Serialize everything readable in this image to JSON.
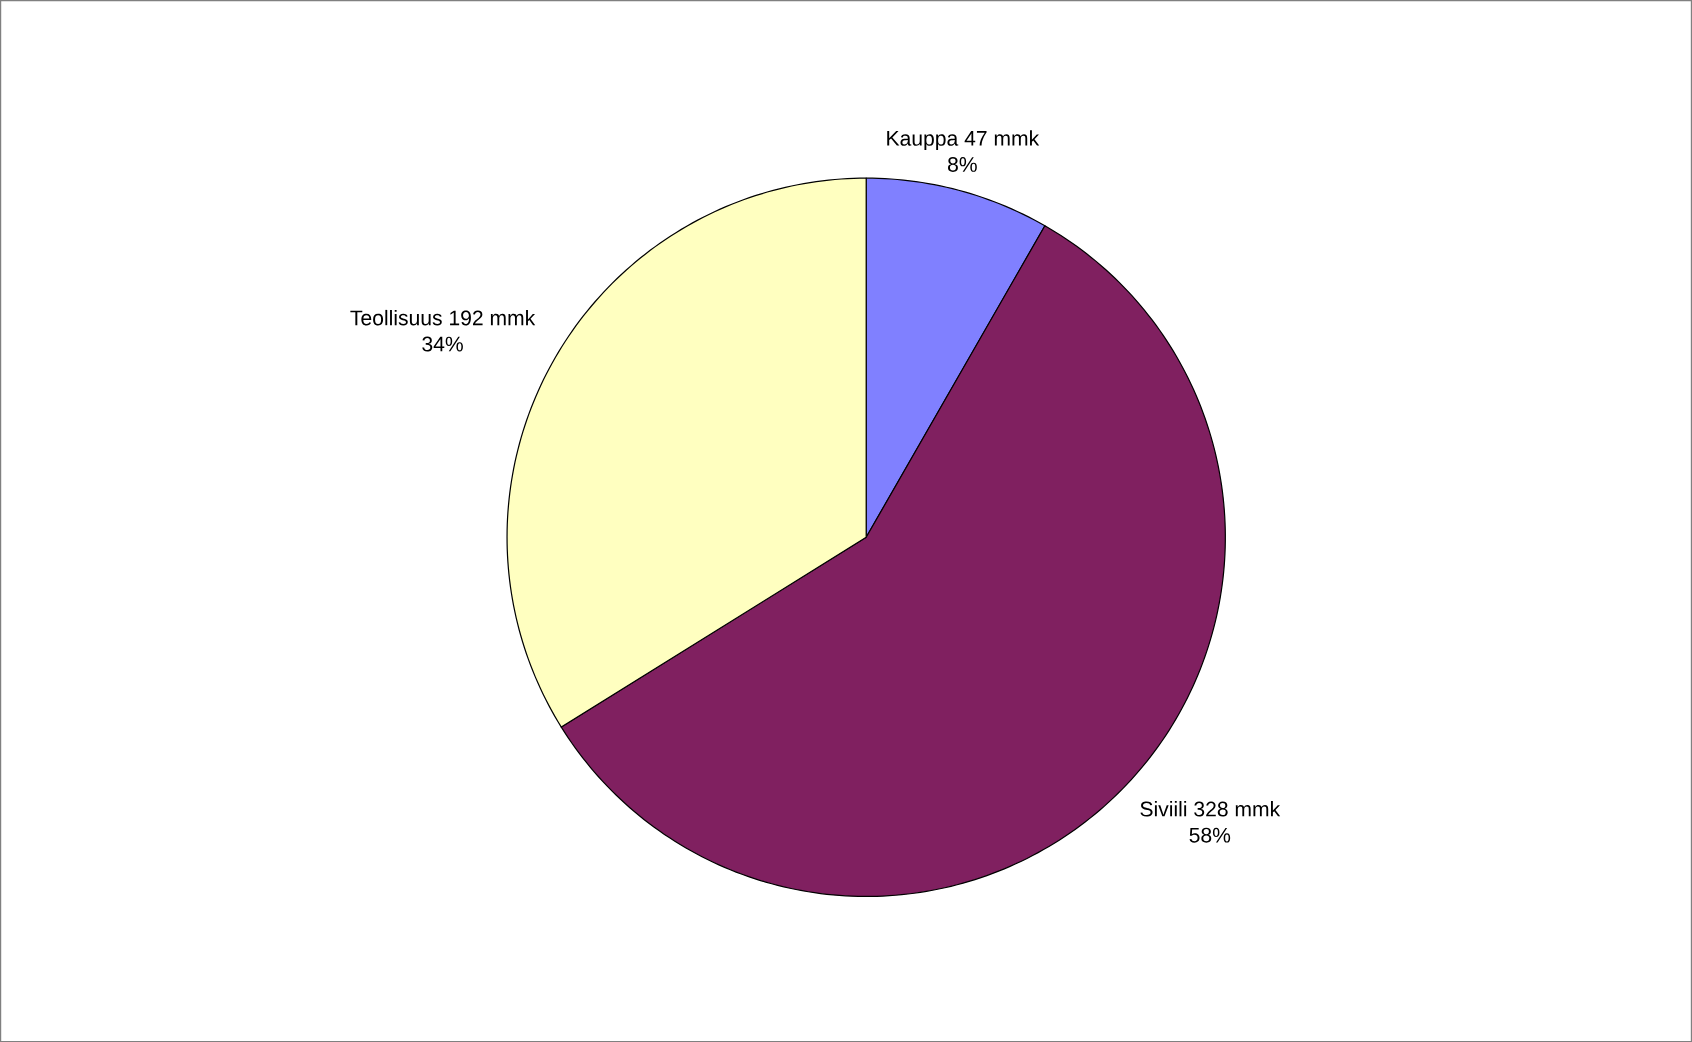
{
  "chart_data": {
    "type": "pie",
    "categories": [
      "Kauppa",
      "Siviili",
      "Teollisuus"
    ],
    "values": [
      47,
      328,
      192
    ],
    "value_labels": [
      "47 mmk",
      "328 mmk",
      "192 mmk"
    ],
    "annotations": [
      "8%",
      "58%",
      "34%"
    ],
    "colors": [
      "#8080ff",
      "#802060",
      "#ffffc0"
    ]
  }
}
